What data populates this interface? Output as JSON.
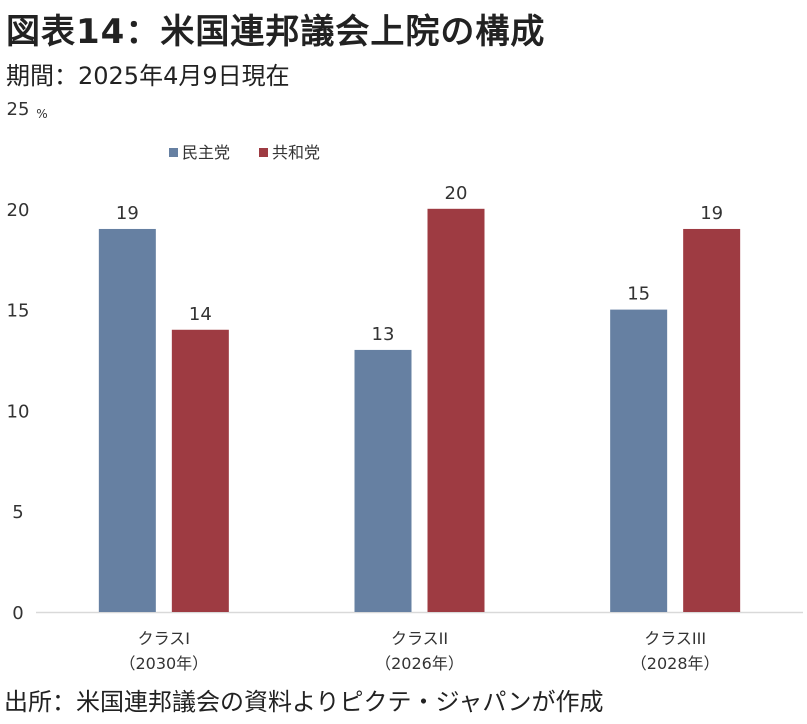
{
  "header": {
    "title": "図表14：米国連邦議会上院の構成",
    "subtitle": "期間：2025年4月9日現在"
  },
  "footer": {
    "source": "出所：米国連邦議会の資料よりピクテ・ジャパンが作成"
  },
  "chart_data": {
    "type": "bar",
    "title": "",
    "xlabel": "",
    "ylabel": "%",
    "ylim": [
      0,
      25
    ],
    "yticks": [
      0,
      5,
      10,
      15,
      20,
      25
    ],
    "grid": false,
    "legend_position": "top-left",
    "categories": [
      [
        "クラスI",
        "（2030年）"
      ],
      [
        "クラスII",
        "（2026年）"
      ],
      [
        "クラスIII",
        "（2028年）"
      ]
    ],
    "series": [
      {
        "name": "民主党",
        "color": "#6680a2",
        "values": [
          19,
          13,
          15
        ]
      },
      {
        "name": "共和党",
        "color": "#9e3b42",
        "values": [
          14,
          20,
          19
        ]
      }
    ]
  }
}
